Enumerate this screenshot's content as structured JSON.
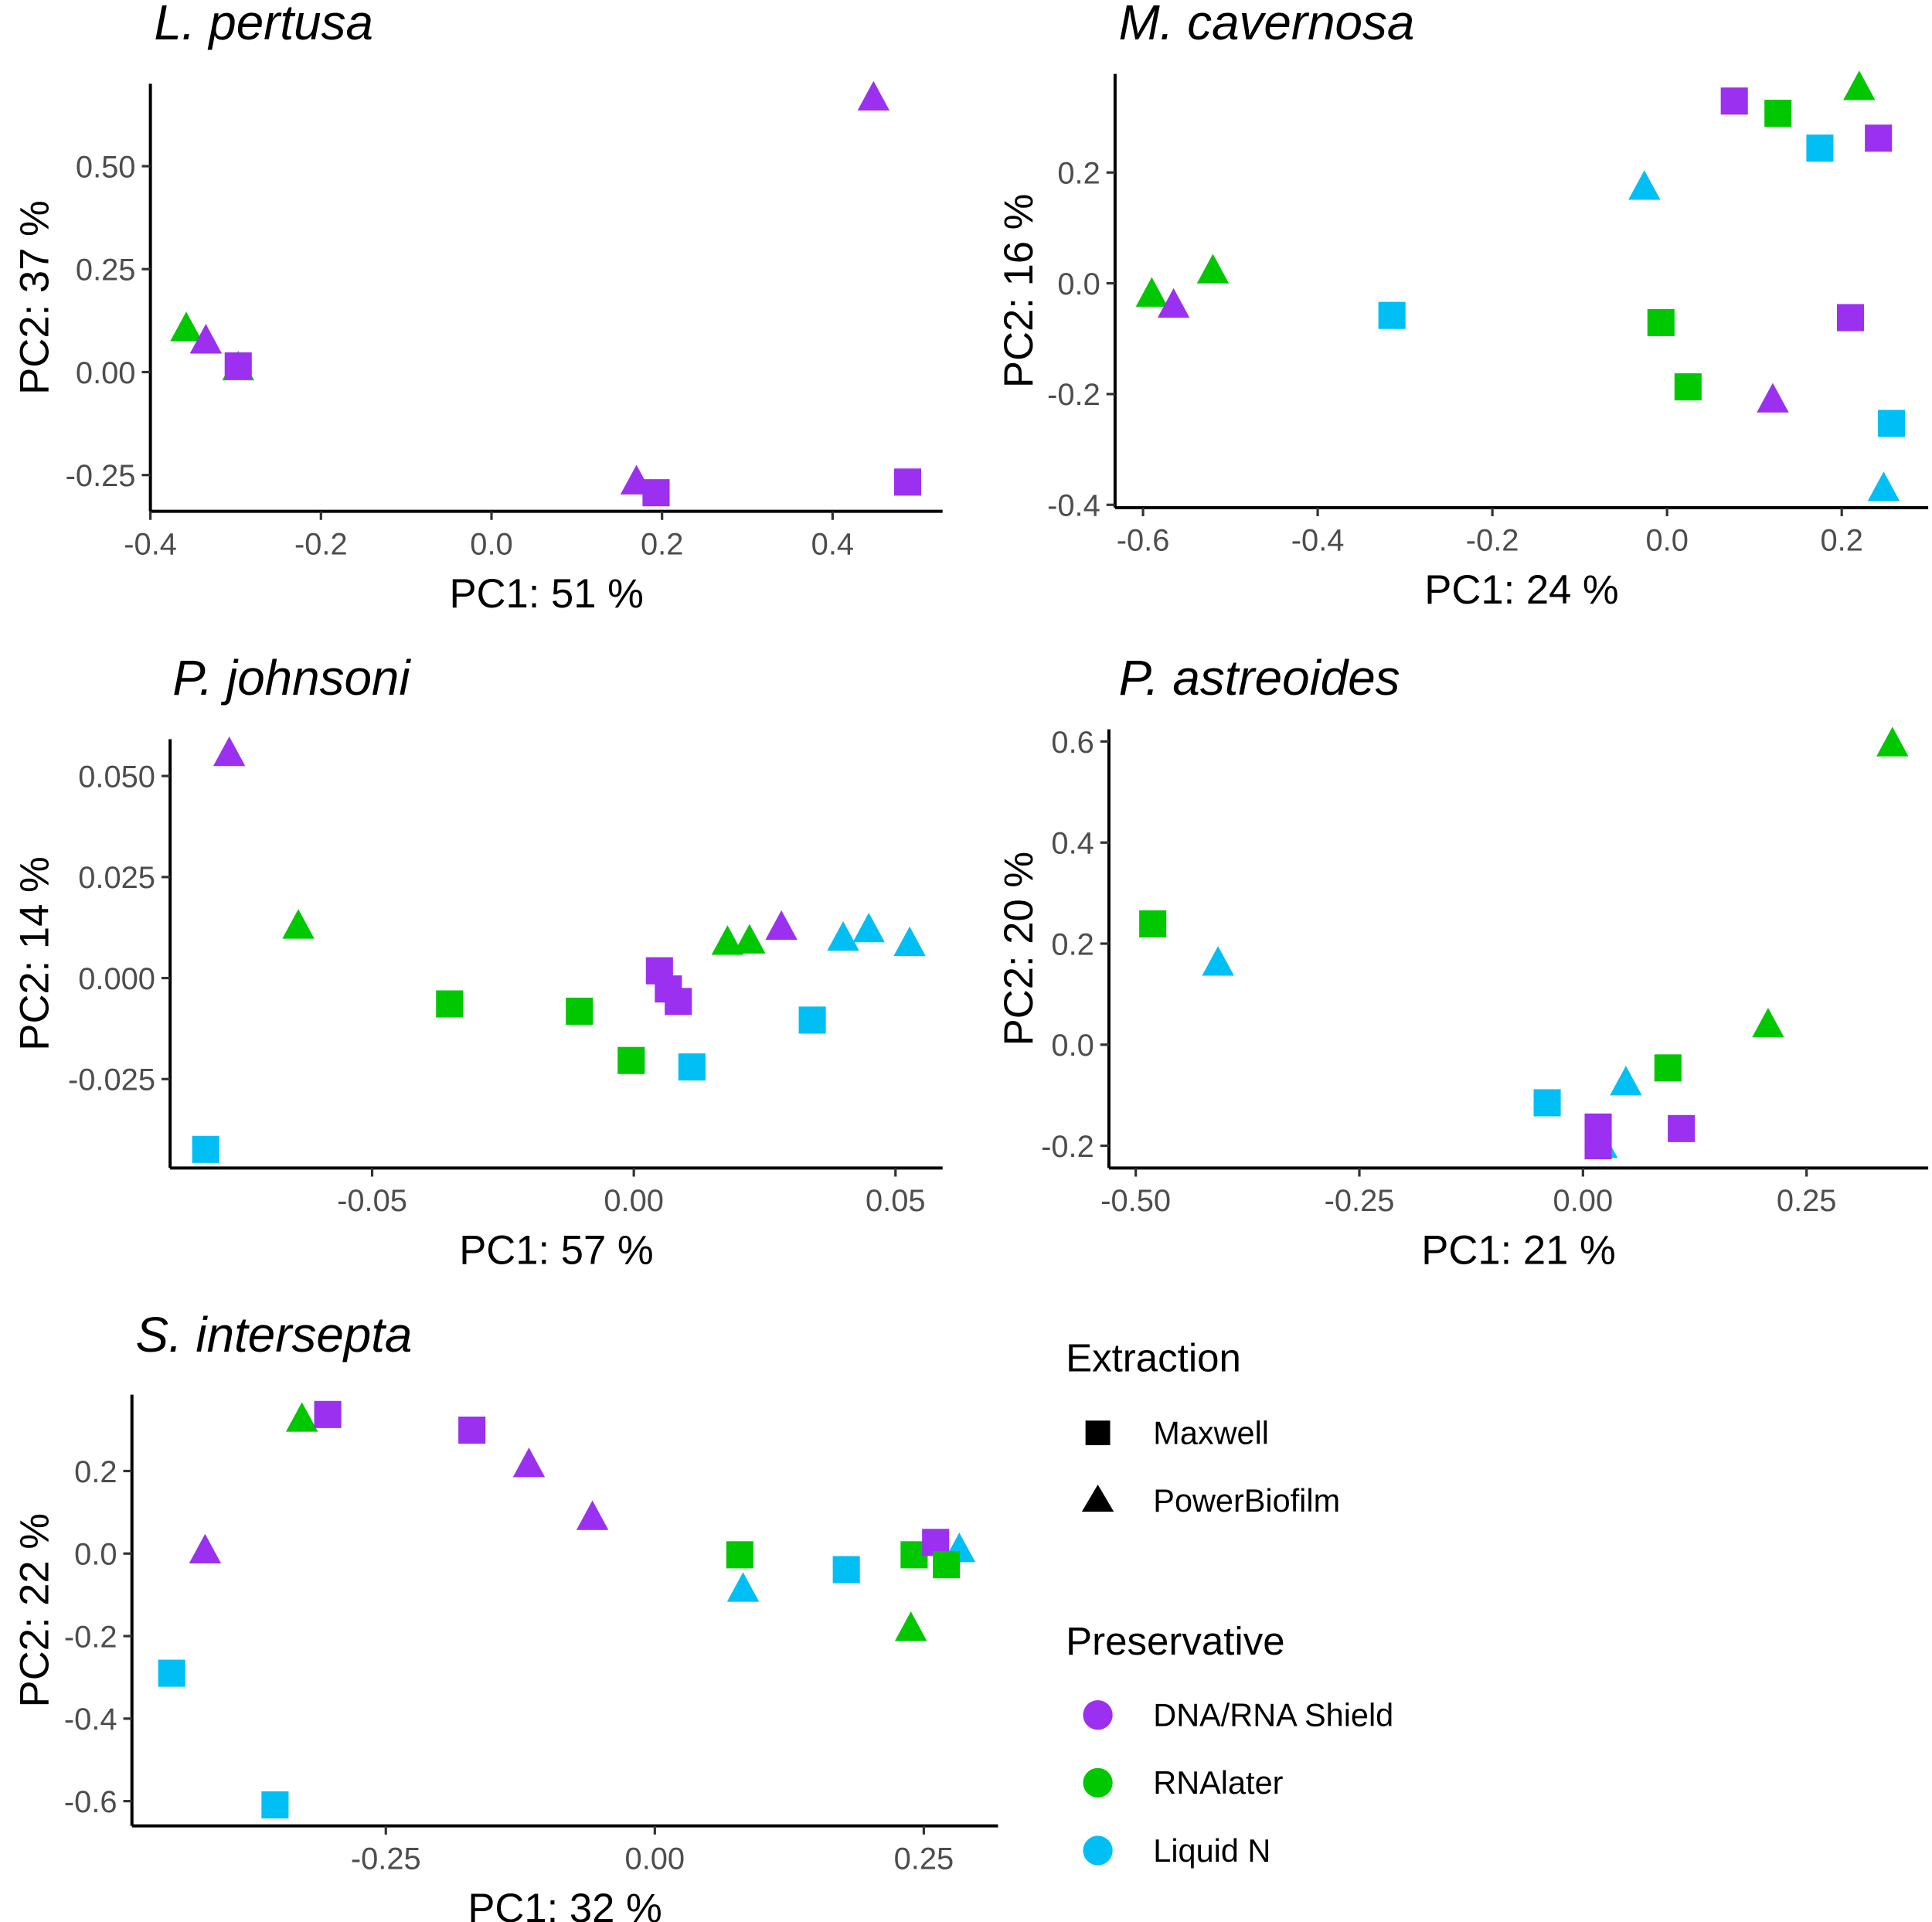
{
  "colors": {
    "DNA/RNA Shield": "#9B30F0",
    "RNAlater": "#00C800",
    "Liquid N": "#00BFF5"
  },
  "legend": {
    "extraction_title": "Extraction",
    "extraction": [
      {
        "label": "Maxwell",
        "shape": "square"
      },
      {
        "label": "PowerBiofilm",
        "shape": "triangle"
      }
    ],
    "preservative_title": "Preservative",
    "preservative": [
      {
        "label": "DNA/RNA Shield"
      },
      {
        "label": "RNAlater"
      },
      {
        "label": "Liquid N"
      }
    ]
  },
  "chart_data": [
    {
      "type": "scatter",
      "title": "L. pertusa",
      "xlabel": "PC1:  51 %",
      "ylabel": "PC2:  37 %",
      "xlim": [
        -0.4,
        0.529
      ],
      "ylim": [
        -0.338,
        0.7
      ],
      "xticks": [
        -0.4,
        -0.2,
        0.0,
        0.2,
        0.4
      ],
      "xtick_labels": [
        "-0.4",
        "-0.2",
        "0.0",
        "0.2",
        "0.4"
      ],
      "yticks": [
        -0.25,
        0.0,
        0.25,
        0.5
      ],
      "ytick_labels": [
        "-0.25",
        "0.00",
        "0.25",
        "0.50"
      ],
      "points": [
        {
          "x": 0.448,
          "y": 0.665,
          "p": "DNA/RNA Shield",
          "e": "PowerBiofilm"
        },
        {
          "x": -0.358,
          "y": 0.105,
          "p": "RNAlater",
          "e": "PowerBiofilm"
        },
        {
          "x": -0.335,
          "y": 0.075,
          "p": "DNA/RNA Shield",
          "e": "PowerBiofilm"
        },
        {
          "x": -0.297,
          "y": 0.01,
          "p": "RNAlater",
          "e": "PowerBiofilm"
        },
        {
          "x": -0.297,
          "y": 0.015,
          "p": "DNA/RNA Shield",
          "e": "Maxwell"
        },
        {
          "x": 0.17,
          "y": -0.267,
          "p": "DNA/RNA Shield",
          "e": "PowerBiofilm"
        },
        {
          "x": 0.193,
          "y": -0.293,
          "p": "DNA/RNA Shield",
          "e": "Maxwell"
        },
        {
          "x": 0.488,
          "y": -0.267,
          "p": "DNA/RNA Shield",
          "e": "Maxwell"
        }
      ]
    },
    {
      "type": "scatter",
      "title": "M. cavernosa",
      "xlabel": "PC1:  24 %",
      "ylabel": "PC2:  16 %",
      "xlim": [
        -0.632,
        0.299
      ],
      "ylim": [
        -0.405,
        0.378
      ],
      "xticks": [
        -0.6,
        -0.4,
        -0.2,
        0.0,
        0.2
      ],
      "xtick_labels": [
        "-0.6",
        "-0.4",
        "-0.2",
        "0.0",
        "0.2"
      ],
      "yticks": [
        -0.4,
        -0.2,
        0.0,
        0.2
      ],
      "ytick_labels": [
        "-0.4",
        "-0.2",
        "0.0",
        "0.2"
      ],
      "points": [
        {
          "x": 0.077,
          "y": 0.329,
          "p": "DNA/RNA Shield",
          "e": "Maxwell"
        },
        {
          "x": 0.127,
          "y": 0.307,
          "p": "RNAlater",
          "e": "Maxwell"
        },
        {
          "x": 0.22,
          "y": 0.353,
          "p": "RNAlater",
          "e": "PowerBiofilm"
        },
        {
          "x": 0.175,
          "y": 0.244,
          "p": "Liquid N",
          "e": "Maxwell"
        },
        {
          "x": 0.242,
          "y": 0.262,
          "p": "DNA/RNA Shield",
          "e": "Maxwell"
        },
        {
          "x": -0.026,
          "y": 0.173,
          "p": "Liquid N",
          "e": "PowerBiofilm"
        },
        {
          "x": -0.59,
          "y": -0.02,
          "p": "RNAlater",
          "e": "PowerBiofilm"
        },
        {
          "x": -0.565,
          "y": -0.04,
          "p": "DNA/RNA Shield",
          "e": "PowerBiofilm"
        },
        {
          "x": -0.52,
          "y": 0.022,
          "p": "RNAlater",
          "e": "PowerBiofilm"
        },
        {
          "x": -0.315,
          "y": -0.058,
          "p": "Liquid N",
          "e": "Maxwell"
        },
        {
          "x": -0.007,
          "y": -0.071,
          "p": "RNAlater",
          "e": "Maxwell"
        },
        {
          "x": 0.21,
          "y": -0.062,
          "p": "DNA/RNA Shield",
          "e": "Maxwell"
        },
        {
          "x": 0.024,
          "y": -0.187,
          "p": "RNAlater",
          "e": "Maxwell"
        },
        {
          "x": 0.121,
          "y": -0.211,
          "p": "DNA/RNA Shield",
          "e": "PowerBiofilm"
        },
        {
          "x": 0.257,
          "y": -0.253,
          "p": "Liquid N",
          "e": "Maxwell"
        },
        {
          "x": 0.248,
          "y": -0.371,
          "p": "Liquid N",
          "e": "PowerBiofilm"
        }
      ]
    },
    {
      "type": "scatter",
      "title": "P. johnsoni",
      "xlabel": "PC1:  57 %",
      "ylabel": "PC2:  14 %",
      "xlim": [
        -0.0886,
        0.059
      ],
      "ylim": [
        -0.047,
        0.0591
      ],
      "xticks": [
        -0.05,
        0.0,
        0.05
      ],
      "xtick_labels": [
        "-0.05",
        "0.00",
        "0.05"
      ],
      "yticks": [
        -0.025,
        0.0,
        0.025,
        0.05
      ],
      "ytick_labels": [
        "-0.025",
        "0.000",
        "0.025",
        "0.050"
      ],
      "points": [
        {
          "x": -0.0773,
          "y": 0.0555,
          "p": "DNA/RNA Shield",
          "e": "PowerBiofilm"
        },
        {
          "x": -0.0641,
          "y": 0.0128,
          "p": "RNAlater",
          "e": "PowerBiofilm"
        },
        {
          "x": -0.0352,
          "y": -0.0064,
          "p": "RNAlater",
          "e": "Maxwell"
        },
        {
          "x": -0.0104,
          "y": -0.0082,
          "p": "RNAlater",
          "e": "Maxwell"
        },
        {
          "x": -0.0005,
          "y": -0.0204,
          "p": "RNAlater",
          "e": "Maxwell"
        },
        {
          "x": 0.0049,
          "y": 0.0018,
          "p": "DNA/RNA Shield",
          "e": "Maxwell"
        },
        {
          "x": 0.0066,
          "y": -0.0027,
          "p": "DNA/RNA Shield",
          "e": "Maxwell"
        },
        {
          "x": 0.0085,
          "y": -0.0058,
          "p": "DNA/RNA Shield",
          "e": "Maxwell"
        },
        {
          "x": 0.0111,
          "y": -0.022,
          "p": "Liquid N",
          "e": "Maxwell"
        },
        {
          "x": 0.0179,
          "y": 0.0088,
          "p": "RNAlater",
          "e": "PowerBiofilm"
        },
        {
          "x": 0.0221,
          "y": 0.0091,
          "p": "RNAlater",
          "e": "PowerBiofilm"
        },
        {
          "x": 0.0282,
          "y": 0.0125,
          "p": "DNA/RNA Shield",
          "e": "PowerBiofilm"
        },
        {
          "x": 0.0341,
          "y": -0.0104,
          "p": "Liquid N",
          "e": "Maxwell"
        },
        {
          "x": 0.04,
          "y": 0.0098,
          "p": "Liquid N",
          "e": "PowerBiofilm"
        },
        {
          "x": 0.0449,
          "y": 0.0119,
          "p": "Liquid N",
          "e": "PowerBiofilm"
        },
        {
          "x": 0.0527,
          "y": 0.0085,
          "p": "Liquid N",
          "e": "PowerBiofilm"
        },
        {
          "x": -0.0818,
          "y": -0.0424,
          "p": "Liquid N",
          "e": "Maxwell"
        }
      ]
    },
    {
      "type": "scatter",
      "title": "P. astreoides",
      "xlabel": "PC1:  21 %",
      "ylabel": "PC2:  20 %",
      "xlim": [
        -0.53,
        0.386
      ],
      "ylim": [
        -0.244,
        0.624
      ],
      "xticks": [
        -0.5,
        -0.25,
        0.0,
        0.25
      ],
      "xtick_labels": [
        "-0.50",
        "-0.25",
        "0.00",
        "0.25"
      ],
      "yticks": [
        -0.2,
        0.0,
        0.2,
        0.4,
        0.6
      ],
      "ytick_labels": [
        "-0.2",
        "0.0",
        "0.2",
        "0.4",
        "0.6"
      ],
      "points": [
        {
          "x": 0.346,
          "y": 0.595,
          "p": "RNAlater",
          "e": "PowerBiofilm"
        },
        {
          "x": -0.481,
          "y": 0.239,
          "p": "RNAlater",
          "e": "Maxwell"
        },
        {
          "x": -0.408,
          "y": 0.161,
          "p": "Liquid N",
          "e": "PowerBiofilm"
        },
        {
          "x": 0.207,
          "y": 0.039,
          "p": "RNAlater",
          "e": "PowerBiofilm"
        },
        {
          "x": 0.095,
          "y": -0.046,
          "p": "RNAlater",
          "e": "Maxwell"
        },
        {
          "x": 0.048,
          "y": -0.076,
          "p": "Liquid N",
          "e": "PowerBiofilm"
        },
        {
          "x": -0.04,
          "y": -0.115,
          "p": "Liquid N",
          "e": "Maxwell"
        },
        {
          "x": 0.11,
          "y": -0.166,
          "p": "DNA/RNA Shield",
          "e": "Maxwell"
        },
        {
          "x": 0.021,
          "y": -0.2,
          "p": "Liquid N",
          "e": "PowerBiofilm"
        },
        {
          "x": 0.017,
          "y": -0.163,
          "p": "DNA/RNA Shield",
          "e": "Maxwell"
        },
        {
          "x": 0.017,
          "y": -0.2,
          "p": "DNA/RNA Shield",
          "e": "Maxwell"
        }
      ]
    },
    {
      "type": "scatter",
      "title": "S. intersepta",
      "xlabel": "PC1:  32 %",
      "ylabel": "PC2:  22 %",
      "xlim": [
        -0.486,
        0.319
      ],
      "ylim": [
        -0.66,
        0.385
      ],
      "xticks": [
        -0.25,
        0.0,
        0.25
      ],
      "xtick_labels": [
        "-0.25",
        "0.00",
        "0.25"
      ],
      "yticks": [
        -0.6,
        -0.4,
        -0.2,
        0.0,
        0.2
      ],
      "ytick_labels": [
        "-0.6",
        "-0.4",
        "-0.2",
        "0.0",
        "0.2"
      ],
      "points": [
        {
          "x": -0.328,
          "y": 0.325,
          "p": "RNAlater",
          "e": "PowerBiofilm"
        },
        {
          "x": -0.304,
          "y": 0.337,
          "p": "DNA/RNA Shield",
          "e": "Maxwell"
        },
        {
          "x": -0.17,
          "y": 0.299,
          "p": "DNA/RNA Shield",
          "e": "Maxwell"
        },
        {
          "x": -0.117,
          "y": 0.215,
          "p": "DNA/RNA Shield",
          "e": "PowerBiofilm"
        },
        {
          "x": -0.058,
          "y": 0.087,
          "p": "DNA/RNA Shield",
          "e": "PowerBiofilm"
        },
        {
          "x": -0.418,
          "y": 0.006,
          "p": "DNA/RNA Shield",
          "e": "PowerBiofilm"
        },
        {
          "x": -0.449,
          "y": -0.29,
          "p": "Liquid N",
          "e": "Maxwell"
        },
        {
          "x": -0.353,
          "y": -0.609,
          "p": "Liquid N",
          "e": "Maxwell"
        },
        {
          "x": 0.079,
          "y": -0.003,
          "p": "RNAlater",
          "e": "Maxwell"
        },
        {
          "x": 0.082,
          "y": -0.087,
          "p": "Liquid N",
          "e": "PowerBiofilm"
        },
        {
          "x": 0.178,
          "y": -0.039,
          "p": "Liquid N",
          "e": "Maxwell"
        },
        {
          "x": 0.238,
          "y": -0.182,
          "p": "RNAlater",
          "e": "PowerBiofilm"
        },
        {
          "x": 0.241,
          "y": -0.003,
          "p": "RNAlater",
          "e": "Maxwell"
        },
        {
          "x": 0.283,
          "y": 0.009,
          "p": "Liquid N",
          "e": "PowerBiofilm"
        },
        {
          "x": 0.261,
          "y": 0.027,
          "p": "DNA/RNA Shield",
          "e": "Maxwell"
        },
        {
          "x": 0.271,
          "y": -0.027,
          "p": "RNAlater",
          "e": "Maxwell"
        }
      ]
    }
  ]
}
